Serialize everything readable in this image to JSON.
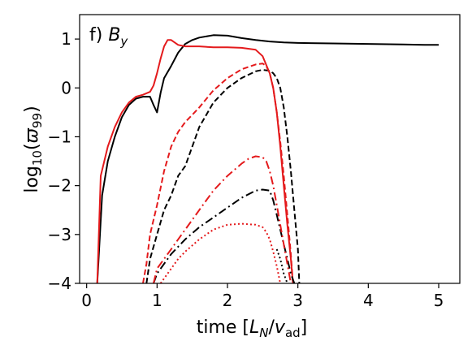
{
  "chart_data": {
    "type": "line",
    "title": "",
    "panel_label": {
      "prefix": "f) ",
      "var": "B",
      "sub": "y"
    },
    "xlabel": {
      "prefix": "time [",
      "L": "L",
      "Lsub": "N",
      "slash": "/",
      "v": "v",
      "vsub": "ad",
      "suffix": "]"
    },
    "ylabel": {
      "prefix": "log",
      "sub": "10",
      "open": "(",
      "var": "ϖ",
      "varsub": "99",
      "close": ")"
    },
    "xlim": [
      -0.1,
      5.3
    ],
    "ylim": [
      -4,
      1.5
    ],
    "xticks": [
      0,
      1,
      2,
      3,
      4,
      5
    ],
    "xtick_labels": [
      "0",
      "1",
      "2",
      "3",
      "4",
      "5"
    ],
    "yticks": [
      -4,
      -3,
      -2,
      -1,
      0,
      1
    ],
    "ytick_labels": [
      "−4",
      "−3",
      "−2",
      "−1",
      "0",
      "1"
    ],
    "grid": false,
    "legend": "none",
    "series": [
      {
        "color": "#000000",
        "dash": "solid",
        "x": [
          0.15,
          0.22,
          0.3,
          0.4,
          0.5,
          0.6,
          0.7,
          0.8,
          0.9,
          0.95,
          1.0,
          1.05,
          1.1,
          1.2,
          1.3,
          1.4,
          1.5,
          1.6,
          1.8,
          2.0,
          2.2,
          2.4,
          2.6,
          2.8,
          3.0,
          3.5,
          4.0,
          4.5,
          4.8,
          5.0
        ],
        "y": [
          -4.0,
          -2.2,
          -1.5,
          -1.0,
          -0.6,
          -0.35,
          -0.22,
          -0.18,
          -0.18,
          -0.35,
          -0.5,
          -0.1,
          0.2,
          0.45,
          0.72,
          0.9,
          0.98,
          1.03,
          1.08,
          1.07,
          1.02,
          0.98,
          0.95,
          0.93,
          0.92,
          0.91,
          0.9,
          0.89,
          0.88,
          0.88
        ]
      },
      {
        "color": "#e41a1c",
        "dash": "solid",
        "x": [
          0.15,
          0.2,
          0.3,
          0.4,
          0.5,
          0.6,
          0.7,
          0.8,
          0.9,
          0.95,
          1.0,
          1.05,
          1.1,
          1.15,
          1.2,
          1.3,
          1.4,
          1.6,
          1.8,
          2.0,
          2.2,
          2.4,
          2.5,
          2.6,
          2.65,
          2.7,
          2.75,
          2.8,
          2.85,
          2.9,
          2.93
        ],
        "y": [
          -4.0,
          -1.8,
          -1.2,
          -0.8,
          -0.5,
          -0.3,
          -0.18,
          -0.14,
          -0.08,
          0.05,
          0.3,
          0.6,
          0.85,
          0.98,
          0.98,
          0.88,
          0.85,
          0.85,
          0.83,
          0.83,
          0.82,
          0.78,
          0.65,
          0.3,
          0.0,
          -0.5,
          -1.2,
          -2.0,
          -2.8,
          -3.5,
          -4.0
        ]
      },
      {
        "color": "#000000",
        "dash": "dashed",
        "x": [
          0.85,
          0.9,
          1.0,
          1.1,
          1.2,
          1.3,
          1.4,
          1.5,
          1.6,
          1.8,
          2.0,
          2.2,
          2.4,
          2.5,
          2.6,
          2.65,
          2.7,
          2.75,
          2.8,
          2.85,
          2.9,
          2.95,
          3.0,
          3.02
        ],
        "y": [
          -4.0,
          -3.5,
          -3.0,
          -2.5,
          -2.2,
          -1.8,
          -1.6,
          -1.2,
          -0.8,
          -0.3,
          0.0,
          0.2,
          0.34,
          0.37,
          0.35,
          0.3,
          0.2,
          0.0,
          -0.4,
          -1.0,
          -1.7,
          -2.5,
          -3.3,
          -4.0
        ]
      },
      {
        "color": "#e41a1c",
        "dash": "dashed",
        "x": [
          0.8,
          0.85,
          0.9,
          1.0,
          1.1,
          1.2,
          1.3,
          1.4,
          1.5,
          1.6,
          1.8,
          2.0,
          2.2,
          2.4,
          2.5,
          2.55,
          2.6,
          2.65,
          2.7,
          2.75,
          2.8,
          2.85,
          2.9,
          2.93
        ],
        "y": [
          -4.0,
          -3.6,
          -3.0,
          -2.4,
          -1.7,
          -1.2,
          -0.9,
          -0.7,
          -0.55,
          -0.4,
          -0.05,
          0.2,
          0.38,
          0.48,
          0.5,
          0.45,
          0.3,
          0.0,
          -0.5,
          -1.1,
          -1.8,
          -2.6,
          -3.4,
          -4.0
        ]
      },
      {
        "color": "#000000",
        "dash": "dashdot",
        "x": [
          0.95,
          1.0,
          1.1,
          1.2,
          1.3,
          1.4,
          1.6,
          1.8,
          2.0,
          2.2,
          2.4,
          2.5,
          2.6,
          2.65,
          2.7,
          2.75,
          2.8,
          2.85,
          2.9,
          2.95
        ],
        "y": [
          -4.0,
          -3.8,
          -3.6,
          -3.4,
          -3.25,
          -3.1,
          -2.85,
          -2.65,
          -2.45,
          -2.25,
          -2.1,
          -2.08,
          -2.1,
          -2.3,
          -2.6,
          -2.9,
          -3.2,
          -3.5,
          -3.8,
          -4.0
        ]
      },
      {
        "color": "#e41a1c",
        "dash": "dashdot",
        "x": [
          0.95,
          1.0,
          1.1,
          1.2,
          1.3,
          1.4,
          1.6,
          1.8,
          2.0,
          2.2,
          2.3,
          2.4,
          2.5,
          2.55,
          2.6,
          2.65,
          2.7,
          2.75,
          2.8,
          2.85,
          2.9
        ],
        "y": [
          -4.0,
          -3.7,
          -3.5,
          -3.3,
          -3.1,
          -2.9,
          -2.5,
          -2.1,
          -1.8,
          -1.55,
          -1.45,
          -1.4,
          -1.42,
          -1.5,
          -1.7,
          -2.0,
          -2.4,
          -2.8,
          -3.2,
          -3.6,
          -4.0
        ]
      },
      {
        "color": "#000000",
        "dash": "dotted",
        "x": [
          2.7,
          2.75,
          2.8,
          2.85
        ],
        "y": [
          -3.3,
          -3.5,
          -3.8,
          -4.0
        ]
      },
      {
        "color": "#e41a1c",
        "dash": "dotted",
        "x": [
          1.05,
          1.1,
          1.2,
          1.3,
          1.4,
          1.6,
          1.8,
          2.0,
          2.2,
          2.4,
          2.5,
          2.55,
          2.6,
          2.65,
          2.7,
          2.75
        ],
        "y": [
          -4.0,
          -3.9,
          -3.7,
          -3.5,
          -3.35,
          -3.1,
          -2.9,
          -2.8,
          -2.78,
          -2.8,
          -2.85,
          -2.95,
          -3.1,
          -3.35,
          -3.65,
          -4.0
        ]
      }
    ]
  }
}
